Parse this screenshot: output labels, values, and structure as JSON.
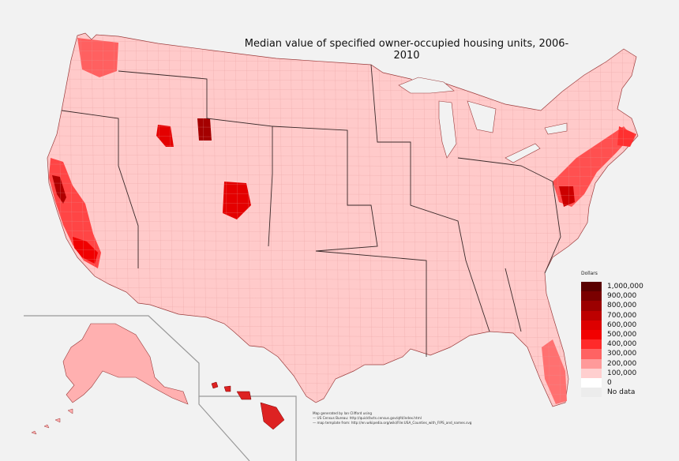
{
  "title": "Median value of specified owner-occupied housing units, 2006-2010",
  "credits": [
    "Map generated by Ian Clifford using",
    "— US Census Bureau: http://quickfacts.census.gov/qfd/index.html",
    "— map template from: http://en.wikipedia.org/wiki/File:USA_Counties_with_FIPS_and_names.svg"
  ],
  "legend": {
    "heading": "Dollars",
    "items": [
      {
        "label": "1,000,000",
        "color": "#5a0000"
      },
      {
        "label": "900,000",
        "color": "#7a0000"
      },
      {
        "label": "800,000",
        "color": "#9c0000"
      },
      {
        "label": "700,000",
        "color": "#bd0000"
      },
      {
        "label": "600,000",
        "color": "#dd0000"
      },
      {
        "label": "500,000",
        "color": "#f20000"
      },
      {
        "label": "400,000",
        "color": "#ff2a2a"
      },
      {
        "label": "300,000",
        "color": "#ff6363"
      },
      {
        "label": "200,000",
        "color": "#ff9a9a"
      },
      {
        "label": "100,000",
        "color": "#ffcfcf"
      },
      {
        "label": "0",
        "color": "#ffffff"
      },
      {
        "label": "No data",
        "color": "#ececec"
      }
    ]
  }
}
